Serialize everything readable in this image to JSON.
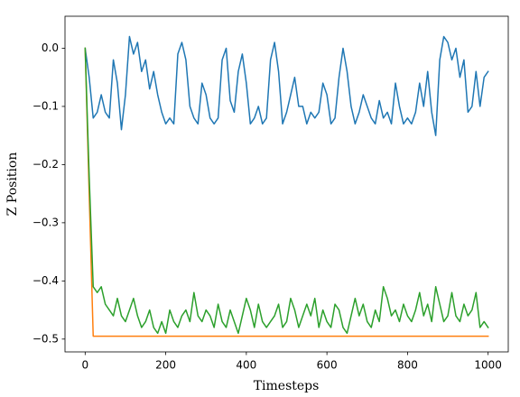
{
  "chart_data": {
    "type": "line",
    "xlabel": "Timesteps",
    "ylabel": "Z Position",
    "xlim": [
      -50,
      1050
    ],
    "ylim": [
      -0.522,
      0.055
    ],
    "xticks": [
      0,
      200,
      400,
      600,
      800,
      1000
    ],
    "yticks": [
      {
        "value": -0.5,
        "label": "−0.5"
      },
      {
        "value": -0.4,
        "label": "−0.4"
      },
      {
        "value": -0.3,
        "label": "−0.3"
      },
      {
        "value": -0.2,
        "label": "−0.2"
      },
      {
        "value": -0.1,
        "label": "−0.1"
      },
      {
        "value": 0,
        "label": "0.0"
      }
    ],
    "grid": false,
    "x": [
      0,
      10,
      20,
      30,
      40,
      50,
      60,
      70,
      80,
      90,
      100,
      110,
      120,
      130,
      140,
      150,
      160,
      170,
      180,
      190,
      200,
      210,
      220,
      230,
      240,
      250,
      260,
      270,
      280,
      290,
      300,
      310,
      320,
      330,
      340,
      350,
      360,
      370,
      380,
      390,
      400,
      410,
      420,
      430,
      440,
      450,
      460,
      470,
      480,
      490,
      500,
      510,
      520,
      530,
      540,
      550,
      560,
      570,
      580,
      590,
      600,
      610,
      620,
      630,
      640,
      650,
      660,
      670,
      680,
      690,
      700,
      710,
      720,
      730,
      740,
      750,
      760,
      770,
      780,
      790,
      800,
      810,
      820,
      830,
      840,
      850,
      860,
      870,
      880,
      890,
      900,
      910,
      920,
      930,
      940,
      950,
      960,
      970,
      980,
      990,
      1000
    ],
    "series": [
      {
        "color": "#1f77b4",
        "values": [
          0,
          -0.05,
          -0.12,
          -0.11,
          -0.08,
          -0.11,
          -0.12,
          -0.02,
          -0.06,
          -0.14,
          -0.08,
          0.02,
          -0.01,
          0.01,
          -0.04,
          -0.02,
          -0.07,
          -0.04,
          -0.08,
          -0.11,
          -0.13,
          -0.12,
          -0.13,
          -0.01,
          0.01,
          -0.02,
          -0.1,
          -0.12,
          -0.13,
          -0.06,
          -0.08,
          -0.12,
          -0.13,
          -0.12,
          -0.02,
          0.0,
          -0.09,
          -0.11,
          -0.04,
          -0.01,
          -0.06,
          -0.13,
          -0.12,
          -0.1,
          -0.13,
          -0.12,
          -0.02,
          0.01,
          -0.04,
          -0.13,
          -0.11,
          -0.08,
          -0.05,
          -0.1,
          -0.1,
          -0.13,
          -0.11,
          -0.12,
          -0.11,
          -0.06,
          -0.08,
          -0.13,
          -0.12,
          -0.05,
          0.0,
          -0.04,
          -0.1,
          -0.13,
          -0.11,
          -0.08,
          -0.1,
          -0.12,
          -0.13,
          -0.09,
          -0.12,
          -0.11,
          -0.13,
          -0.06,
          -0.1,
          -0.13,
          -0.12,
          -0.13,
          -0.11,
          -0.06,
          -0.1,
          -0.04,
          -0.11,
          -0.15,
          -0.02,
          0.02,
          0.01,
          -0.02,
          0.0,
          -0.05,
          -0.02,
          -0.11,
          -0.1,
          -0.04,
          -0.1,
          -0.05,
          -0.04
        ]
      },
      {
        "color": "#ff7f0e",
        "values": [
          0,
          -0.25,
          -0.495,
          -0.495,
          -0.495,
          -0.495,
          -0.495,
          -0.495,
          -0.495,
          -0.495,
          -0.495,
          -0.495,
          -0.495,
          -0.495,
          -0.495,
          -0.495,
          -0.495,
          -0.495,
          -0.495,
          -0.495,
          -0.495,
          -0.495,
          -0.495,
          -0.495,
          -0.495,
          -0.495,
          -0.495,
          -0.495,
          -0.495,
          -0.495,
          -0.495,
          -0.495,
          -0.495,
          -0.495,
          -0.495,
          -0.495,
          -0.495,
          -0.495,
          -0.495,
          -0.495,
          -0.495,
          -0.495,
          -0.495,
          -0.495,
          -0.495,
          -0.495,
          -0.495,
          -0.495,
          -0.495,
          -0.495,
          -0.495,
          -0.495,
          -0.495,
          -0.495,
          -0.495,
          -0.495,
          -0.495,
          -0.495,
          -0.495,
          -0.495,
          -0.495,
          -0.495,
          -0.495,
          -0.495,
          -0.495,
          -0.495,
          -0.495,
          -0.495,
          -0.495,
          -0.495,
          -0.495,
          -0.495,
          -0.495,
          -0.495,
          -0.495,
          -0.495,
          -0.495,
          -0.495,
          -0.495,
          -0.495,
          -0.495,
          -0.495,
          -0.495,
          -0.495,
          -0.495,
          -0.495,
          -0.495,
          -0.495,
          -0.495,
          -0.495,
          -0.495,
          -0.495,
          -0.495,
          -0.495,
          -0.495,
          -0.495,
          -0.495,
          -0.495,
          -0.495,
          -0.495,
          -0.495
        ]
      },
      {
        "color": "#2ca02c",
        "values": [
          0,
          -0.22,
          -0.41,
          -0.42,
          -0.41,
          -0.44,
          -0.45,
          -0.46,
          -0.43,
          -0.46,
          -0.47,
          -0.45,
          -0.43,
          -0.46,
          -0.48,
          -0.47,
          -0.45,
          -0.48,
          -0.49,
          -0.47,
          -0.49,
          -0.45,
          -0.47,
          -0.48,
          -0.46,
          -0.45,
          -0.47,
          -0.42,
          -0.46,
          -0.47,
          -0.45,
          -0.46,
          -0.48,
          -0.44,
          -0.47,
          -0.48,
          -0.45,
          -0.47,
          -0.49,
          -0.46,
          -0.43,
          -0.45,
          -0.48,
          -0.44,
          -0.47,
          -0.48,
          -0.47,
          -0.46,
          -0.44,
          -0.48,
          -0.47,
          -0.43,
          -0.45,
          -0.48,
          -0.46,
          -0.44,
          -0.46,
          -0.43,
          -0.48,
          -0.45,
          -0.47,
          -0.48,
          -0.44,
          -0.45,
          -0.48,
          -0.49,
          -0.46,
          -0.43,
          -0.46,
          -0.44,
          -0.47,
          -0.48,
          -0.45,
          -0.47,
          -0.41,
          -0.43,
          -0.46,
          -0.45,
          -0.47,
          -0.44,
          -0.46,
          -0.47,
          -0.45,
          -0.42,
          -0.46,
          -0.44,
          -0.47,
          -0.41,
          -0.44,
          -0.47,
          -0.46,
          -0.42,
          -0.46,
          -0.47,
          -0.44,
          -0.46,
          -0.45,
          -0.42,
          -0.48,
          -0.47,
          -0.48
        ]
      }
    ]
  }
}
